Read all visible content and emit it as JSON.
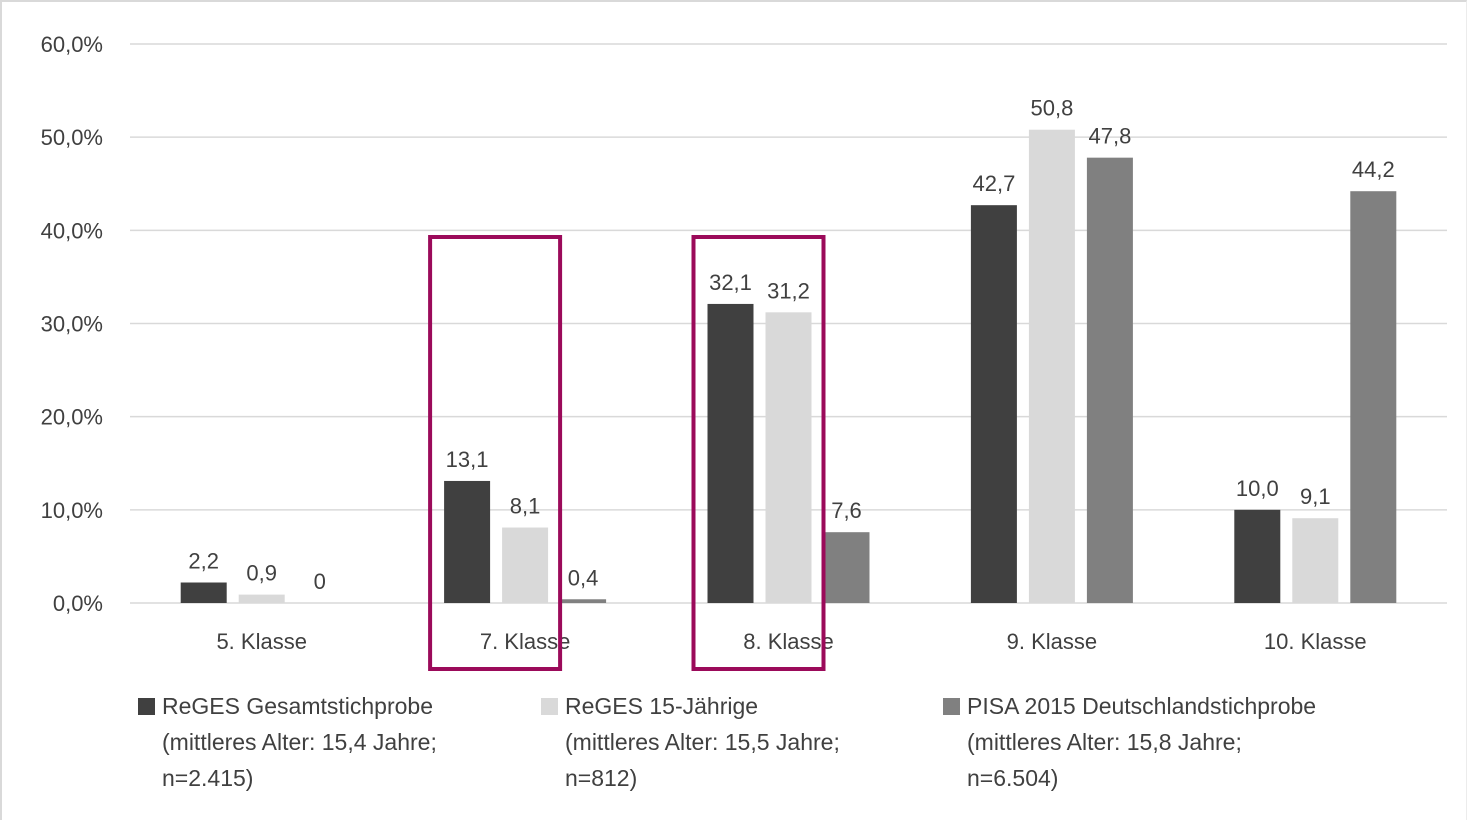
{
  "chart_data": {
    "type": "bar",
    "categories": [
      "5. Klasse",
      "7. Klasse",
      "8. Klasse",
      "9. Klasse",
      "10. Klasse"
    ],
    "series": [
      {
        "name_lines": [
          "ReGES Gesamtstichprobe",
          "(mittleres Alter: 15,4 Jahre;",
          "n=2.415)"
        ],
        "color": "#404040",
        "values": [
          2.2,
          13.1,
          32.1,
          42.7,
          10.0
        ],
        "labels": [
          "2,2",
          "13,1",
          "32,1",
          "42,7",
          "10,0"
        ]
      },
      {
        "name_lines": [
          "ReGES 15-Jährige",
          "(mittleres Alter: 15,5 Jahre;",
          "n=812)"
        ],
        "color": "#d9d9d9",
        "values": [
          0.9,
          8.1,
          31.2,
          50.8,
          9.1
        ],
        "labels": [
          "0,9",
          "8,1",
          "31,2",
          "50,8",
          "9,1"
        ]
      },
      {
        "name_lines": [
          "PISA 2015 Deutschlandstichprobe",
          "(mittleres Alter: 15,8 Jahre;",
          "n=6.504)"
        ],
        "color": "#808080",
        "values": [
          0,
          0.4,
          7.6,
          47.8,
          44.2
        ],
        "labels": [
          "0",
          "0,4",
          "7,6",
          "47,8",
          "44,2"
        ]
      }
    ],
    "yticks": [
      0,
      10,
      20,
      30,
      40,
      50,
      60
    ],
    "yticklabels": [
      "0,0%",
      "10,0%",
      "20,0%",
      "30,0%",
      "40,0%",
      "50,0%",
      "60,0%"
    ],
    "ylim": [
      0,
      60
    ],
    "grid": true,
    "legend_position": "bottom",
    "highlight_categories": [
      "7. Klasse",
      "8. Klasse"
    ],
    "highlight_color": "#9b0a5a"
  }
}
